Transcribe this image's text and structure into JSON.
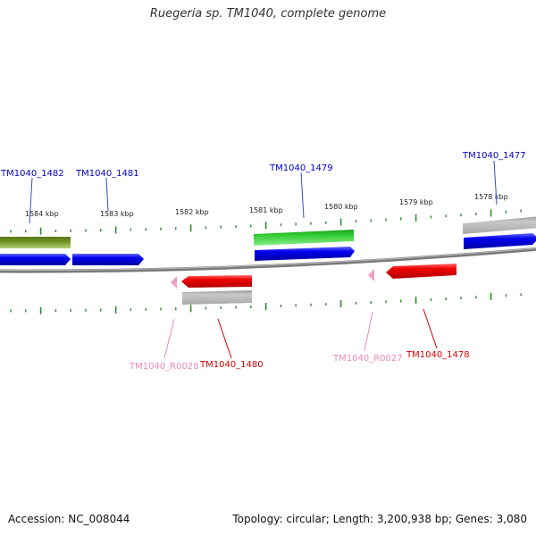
{
  "title": "Ruegeria sp. TM1040, complete genome",
  "footer": {
    "accession": "Accession: NC_008044",
    "info": "Topology: circular; Length: 3,200,938 bp; Genes: 3,080"
  },
  "colors": {
    "tick": "#2e8b2e",
    "backbone": "#808080",
    "forward_label": "#0000cc",
    "reverse_label": "#d40000",
    "rna_label": "#e889b8"
  },
  "scale_labels": [
    "1584 kbp",
    "1583 kbp",
    "1582 kbp",
    "1581 kbp",
    "1580 kbp",
    "1579 kbp",
    "1578 kbp"
  ],
  "genes": [
    {
      "id": "TM1040_1482",
      "strand": "forward",
      "color": "#0000ee"
    },
    {
      "id": "TM1040_1481",
      "strand": "forward",
      "color": "#0000ee"
    },
    {
      "id": "TM1040_1479",
      "strand": "forward",
      "color": "#0000ee"
    },
    {
      "id": "TM1040_1477",
      "strand": "forward",
      "color": "#0000ee"
    },
    {
      "id": "TM1040_R0028",
      "strand": "reverse",
      "color": "#f0a0c8"
    },
    {
      "id": "TM1040_1480",
      "strand": "reverse",
      "color": "#ee0000"
    },
    {
      "id": "TM1040_R0027",
      "strand": "reverse",
      "color": "#f0a0c8"
    },
    {
      "id": "TM1040_1478",
      "strand": "reverse",
      "color": "#ee0000"
    }
  ]
}
